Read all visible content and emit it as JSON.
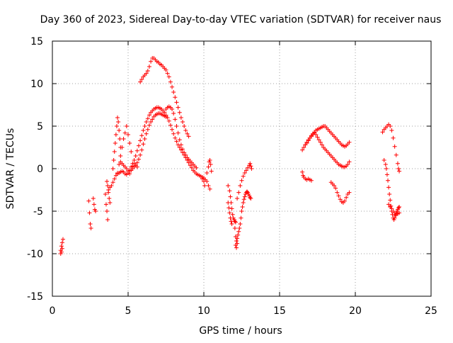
{
  "chart_data": {
    "type": "scatter",
    "title": "Day 360 of 2023, Sidereal Day-to-day VTEC variation (SDTVAR) for receiver naus",
    "xlabel": "GPS time / hours",
    "ylabel": "SDTVAR / TECUs",
    "xlim": [
      0,
      25
    ],
    "ylim": [
      -15,
      15
    ],
    "xticks": [
      0,
      5,
      10,
      15,
      20,
      25
    ],
    "yticks": [
      -15,
      -10,
      -5,
      0,
      5,
      10,
      15
    ],
    "xtick_labels": [
      "0",
      "5",
      "10",
      "15",
      "20",
      "25"
    ],
    "ytick_labels": [
      "-15",
      "-10",
      "-5",
      "0",
      "5",
      "10",
      "15"
    ],
    "grid": true,
    "marker": "plus",
    "color": "#ff0000",
    "series": [
      {
        "name": "SDTVAR",
        "segments": [
          {
            "x": [
              0.55,
              0.6,
              0.65,
              0.7
            ],
            "y": [
              -9.6,
              -9.1,
              -8.7,
              -8.3
            ]
          },
          {
            "x": [
              0.55,
              0.6,
              0.65
            ],
            "y": [
              -10.0,
              -9.8,
              -9.4
            ]
          },
          {
            "x": [
              2.4,
              2.45,
              2.5,
              2.55
            ],
            "y": [
              -3.8,
              -5.2,
              -6.5,
              -7.0
            ]
          },
          {
            "x": [
              2.7,
              2.75,
              2.8,
              2.85
            ],
            "y": [
              -3.5,
              -4.2,
              -4.8,
              -5.0
            ]
          },
          {
            "x": [
              3.5,
              3.55,
              3.6,
              3.65
            ],
            "y": [
              -3.0,
              -4.2,
              -5.0,
              -6.0
            ]
          },
          {
            "x": [
              3.6,
              3.65,
              3.7,
              3.75,
              3.8
            ],
            "y": [
              -1.5,
              -2.0,
              -2.8,
              -3.5,
              -4.0
            ]
          },
          {
            "x": [
              3.7,
              3.8,
              3.9,
              4.0,
              4.1,
              4.2,
              4.3,
              4.4,
              4.5,
              4.6,
              4.7,
              4.8,
              4.9,
              5.0,
              5.1,
              5.2,
              5.3,
              5.4,
              5.5,
              5.6,
              5.7,
              5.8,
              5.9,
              6.0,
              6.1,
              6.2,
              6.3,
              6.4,
              6.5,
              6.6,
              6.7,
              6.8,
              6.9,
              7.0,
              7.1,
              7.2,
              7.3,
              7.4,
              7.5,
              7.6,
              7.7,
              7.8,
              7.9,
              8.0,
              8.1,
              8.2,
              8.3,
              8.4,
              8.5,
              8.6,
              8.7,
              8.8,
              8.9,
              9.0,
              9.1,
              9.2,
              9.3,
              9.4,
              9.5,
              9.6,
              9.7,
              9.8,
              9.9,
              10.0
            ],
            "y": [
              -2.5,
              -2.2,
              -2.0,
              -1.6,
              -1.2,
              -0.8,
              -0.6,
              -0.5,
              -0.4,
              -0.3,
              -0.4,
              -0.6,
              -0.7,
              -0.5,
              -0.2,
              0.2,
              0.6,
              1.0,
              1.5,
              2.1,
              2.7,
              3.3,
              3.9,
              4.5,
              5.0,
              5.5,
              5.9,
              6.3,
              6.6,
              6.8,
              7.0,
              7.1,
              7.2,
              7.2,
              7.1,
              7.0,
              6.8,
              6.6,
              6.3,
              6.0,
              5.6,
              5.1,
              4.6,
              4.1,
              3.6,
              3.2,
              2.8,
              2.5,
              2.2,
              1.9,
              1.6,
              1.3,
              1.0,
              0.7,
              0.4,
              0.1,
              -0.2,
              -0.4,
              -0.6,
              -0.7,
              -0.8,
              -0.9,
              -1.0,
              -1.1
            ]
          },
          {
            "x": [
              4.0,
              4.05,
              4.1,
              4.15,
              4.2,
              4.25,
              4.3,
              4.35,
              4.4,
              4.45,
              4.5
            ],
            "y": [
              0.0,
              1.0,
              2.0,
              3.0,
              4.0,
              5.0,
              6.0,
              5.5,
              4.5,
              3.5,
              2.5
            ]
          },
          {
            "x": [
              4.3,
              4.4,
              4.5,
              4.6,
              4.7,
              4.8,
              4.9,
              5.0,
              5.1,
              5.2
            ],
            "y": [
              -0.5,
              0.5,
              1.5,
              2.5,
              3.5,
              4.2,
              5.0,
              4.0,
              3.0,
              2.0
            ]
          },
          {
            "x": [
              4.5,
              4.6,
              4.7,
              4.8,
              4.9,
              5.0,
              5.1,
              5.2,
              5.3,
              5.4,
              5.5,
              5.6
            ],
            "y": [
              0.8,
              0.6,
              0.4,
              0.2,
              0.0,
              -0.3,
              -0.6,
              -0.2,
              0.3,
              0.6,
              0.4,
              0.2
            ]
          },
          {
            "x": [
              5.8,
              5.9,
              6.0,
              6.1,
              6.2,
              6.3,
              6.4,
              6.5,
              6.6,
              6.7,
              6.8,
              6.9,
              7.0,
              7.1,
              7.2,
              7.3,
              7.4,
              7.5,
              7.6,
              7.7,
              7.8,
              7.9,
              8.0,
              8.1,
              8.2,
              8.3,
              8.4,
              8.5,
              8.6,
              8.7,
              8.8,
              8.9,
              9.0
            ],
            "y": [
              10.2,
              10.5,
              10.8,
              11.0,
              11.2,
              11.5,
              12.0,
              12.6,
              13.0,
              13.0,
              12.8,
              12.6,
              12.5,
              12.3,
              12.2,
              12.0,
              11.8,
              11.6,
              11.2,
              10.8,
              10.2,
              9.6,
              9.0,
              8.4,
              7.8,
              7.2,
              6.6,
              6.0,
              5.5,
              5.0,
              4.5,
              4.1,
              3.8
            ]
          },
          {
            "x": [
              7.5,
              7.6,
              7.7,
              7.8,
              7.9,
              8.0,
              8.1,
              8.2,
              8.3,
              8.4,
              8.5,
              8.6,
              8.7,
              8.8,
              8.9,
              9.0,
              9.1,
              9.2,
              9.3,
              9.4,
              9.5
            ],
            "y": [
              7.0,
              7.2,
              7.3,
              7.2,
              7.0,
              6.5,
              5.8,
              5.0,
              4.2,
              3.4,
              2.8,
              2.3,
              1.9,
              1.6,
              1.3,
              1.1,
              0.9,
              0.7,
              0.5,
              0.3,
              0.1
            ]
          },
          {
            "x": [
              5.2,
              5.3,
              5.4,
              5.5,
              5.6,
              5.7,
              5.8,
              5.9,
              6.0,
              6.1,
              6.2,
              6.3,
              6.4,
              6.5,
              6.6,
              6.7,
              6.8,
              6.9,
              7.0,
              7.1,
              7.2,
              7.3,
              7.4,
              7.5
            ],
            "y": [
              -0.2,
              0.0,
              0.2,
              0.4,
              0.7,
              1.1,
              1.6,
              2.2,
              2.9,
              3.5,
              4.1,
              4.6,
              5.1,
              5.5,
              5.8,
              6.1,
              6.3,
              6.4,
              6.5,
              6.5,
              6.4,
              6.3,
              6.2,
              6.1
            ]
          },
          {
            "x": [
              9.9,
              10.0,
              10.05,
              10.1,
              10.2,
              10.3,
              10.35,
              10.4,
              10.45,
              10.5
            ],
            "y": [
              -1.2,
              -1.5,
              -2.0,
              -1.3,
              -0.5,
              0.2,
              0.8,
              1.0,
              0.5,
              -0.3
            ]
          },
          {
            "x": [
              10.2,
              10.3,
              10.4
            ],
            "y": [
              -1.5,
              -2.0,
              -2.4
            ]
          },
          {
            "x": [
              11.6,
              11.7,
              11.75,
              11.8,
              11.85,
              11.9,
              11.95,
              12.0,
              12.05,
              12.1
            ],
            "y": [
              -2.0,
              -2.6,
              -3.3,
              -4.0,
              -4.7,
              -5.4,
              -5.8,
              -6.0,
              -6.2,
              -6.3
            ]
          },
          {
            "x": [
              11.6,
              11.65,
              11.7,
              11.75,
              11.8,
              11.85
            ],
            "y": [
              -4.0,
              -4.6,
              -5.2,
              -5.8,
              -6.2,
              -6.5
            ]
          },
          {
            "x": [
              12.0,
              12.05,
              12.1,
              12.15,
              12.2,
              12.25,
              12.3,
              12.35,
              12.4,
              12.45,
              12.5,
              12.55,
              12.6,
              12.65,
              12.7,
              12.75,
              12.8,
              12.85,
              12.9,
              12.95,
              13.0,
              13.05,
              13.1
            ],
            "y": [
              -6.0,
              -7.0,
              -8.0,
              -8.5,
              -8.2,
              -7.8,
              -7.4,
              -7.0,
              -6.5,
              -5.8,
              -5.0,
              -4.5,
              -4.0,
              -3.6,
              -3.3,
              -3.0,
              -2.8,
              -2.7,
              -2.8,
              -3.0,
              -3.2,
              -3.4,
              -3.5
            ]
          },
          {
            "x": [
              12.1,
              12.15,
              12.2
            ],
            "y": [
              -9.0,
              -9.3,
              -8.8
            ]
          },
          {
            "x": [
              12.2,
              12.3,
              12.4,
              12.5,
              12.6,
              12.7,
              12.8,
              12.9,
              13.0,
              13.05,
              13.1,
              13.15
            ],
            "y": [
              -3.5,
              -2.8,
              -2.0,
              -1.4,
              -0.9,
              -0.5,
              -0.2,
              0.1,
              0.4,
              0.6,
              0.3,
              0.0
            ]
          },
          {
            "x": [
              16.5,
              16.55,
              16.6,
              16.7,
              16.8,
              16.9,
              17.0,
              17.1
            ],
            "y": [
              -0.4,
              -0.8,
              -1.0,
              -1.2,
              -1.3,
              -1.2,
              -1.3,
              -1.4
            ]
          },
          {
            "x": [
              16.5,
              16.6,
              16.7,
              16.8,
              16.9,
              17.0,
              17.1,
              17.2,
              17.3,
              17.4,
              17.5,
              17.6,
              17.7,
              17.8,
              17.9,
              18.0,
              18.1,
              18.2,
              18.3,
              18.4,
              18.5,
              18.6,
              18.7,
              18.8,
              18.9,
              19.0,
              19.1,
              19.2,
              19.3,
              19.4,
              19.5,
              19.6
            ],
            "y": [
              2.2,
              2.5,
              2.8,
              3.0,
              3.3,
              3.6,
              3.9,
              4.1,
              4.3,
              4.5,
              4.6,
              4.7,
              4.8,
              4.9,
              5.0,
              5.0,
              4.8,
              4.6,
              4.4,
              4.2,
              4.0,
              3.8,
              3.6,
              3.4,
              3.2,
              3.0,
              2.8,
              2.7,
              2.6,
              2.7,
              2.9,
              3.1
            ]
          },
          {
            "x": [
              16.7,
              16.8,
              16.9,
              17.0,
              17.1,
              17.2,
              17.3,
              17.4,
              17.5,
              17.6,
              17.7,
              17.8,
              17.9,
              18.0,
              18.1,
              18.2,
              18.3,
              18.4,
              18.5,
              18.6,
              18.7,
              18.8,
              18.9,
              19.0,
              19.1,
              19.2,
              19.3,
              19.4,
              19.5,
              19.6
            ],
            "y": [
              2.8,
              3.1,
              3.4,
              3.6,
              3.8,
              4.0,
              4.2,
              4.0,
              3.7,
              3.4,
              3.1,
              2.8,
              2.5,
              2.3,
              2.1,
              1.9,
              1.7,
              1.5,
              1.3,
              1.1,
              0.9,
              0.7,
              0.5,
              0.4,
              0.3,
              0.2,
              0.2,
              0.3,
              0.5,
              0.8
            ]
          },
          {
            "x": [
              18.4,
              18.5,
              18.6,
              18.7,
              18.8,
              18.9,
              19.0,
              19.1,
              19.2,
              19.3,
              19.4,
              19.5,
              19.6
            ],
            "y": [
              -1.6,
              -1.8,
              -2.0,
              -2.3,
              -2.8,
              -3.2,
              -3.6,
              -3.9,
              -4.0,
              -3.8,
              -3.4,
              -3.0,
              -2.8
            ]
          },
          {
            "x": [
              21.8,
              21.9,
              22.0,
              22.1,
              22.2,
              22.3,
              22.4,
              22.5,
              22.6,
              22.7,
              22.8,
              22.85,
              22.9
            ],
            "y": [
              4.3,
              4.6,
              4.8,
              5.0,
              5.2,
              5.0,
              4.5,
              3.6,
              2.6,
              1.6,
              0.6,
              0.0,
              -0.3
            ]
          },
          {
            "x": [
              21.9,
              22.0,
              22.05,
              22.1,
              22.15,
              22.2,
              22.25,
              22.3,
              22.35,
              22.4,
              22.45,
              22.5,
              22.55,
              22.6,
              22.65,
              22.7,
              22.75,
              22.8,
              22.85,
              22.9
            ],
            "y": [
              1.0,
              0.5,
              0.0,
              -0.7,
              -1.4,
              -2.2,
              -3.0,
              -3.7,
              -4.4,
              -5.0,
              -5.4,
              -5.8,
              -6.0,
              -5.8,
              -5.5,
              -5.2,
              -5.0,
              -4.8,
              -4.6,
              -4.5
            ]
          },
          {
            "x": [
              22.2,
              22.3,
              22.4,
              22.5,
              22.6,
              22.7,
              22.8,
              22.9
            ],
            "y": [
              -4.2,
              -4.5,
              -4.7,
              -5.0,
              -5.2,
              -5.4,
              -5.3,
              -5.2
            ]
          }
        ]
      }
    ]
  }
}
